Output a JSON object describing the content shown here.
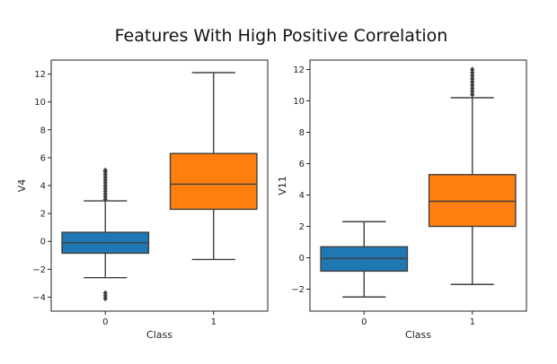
{
  "figure": {
    "title": "Features With High Positive Correlation"
  },
  "chart_data": [
    {
      "type": "box",
      "xlabel": "Class",
      "ylabel": "V4",
      "categories": [
        "0",
        "1"
      ],
      "ylim": [
        -5,
        13
      ],
      "yticks": [
        -4,
        -2,
        0,
        2,
        4,
        6,
        8,
        10,
        12
      ],
      "colors": [
        "#1f77b4",
        "#ff7f0e"
      ],
      "boxes": [
        {
          "category": "0",
          "whisker_low": -2.6,
          "q1": -0.85,
          "median": -0.1,
          "q3": 0.65,
          "whisker_high": 2.9,
          "outliers": [
            3.0,
            3.2,
            3.4,
            3.6,
            3.8,
            4.0,
            4.2,
            4.4,
            4.6,
            4.8,
            5.0,
            5.1,
            -3.7,
            -3.9,
            -4.1
          ]
        },
        {
          "category": "1",
          "whisker_low": -1.3,
          "q1": 2.3,
          "median": 4.1,
          "q3": 6.3,
          "whisker_high": 12.1,
          "outliers": []
        }
      ]
    },
    {
      "type": "box",
      "xlabel": "Class",
      "ylabel": "V11",
      "categories": [
        "0",
        "1"
      ],
      "ylim": [
        -3.4,
        12.6
      ],
      "yticks": [
        -2,
        0,
        2,
        4,
        6,
        8,
        10,
        12
      ],
      "colors": [
        "#1f77b4",
        "#ff7f0e"
      ],
      "boxes": [
        {
          "category": "0",
          "whisker_low": -2.5,
          "q1": -0.85,
          "median": -0.05,
          "q3": 0.7,
          "whisker_high": 2.3,
          "outliers": []
        },
        {
          "category": "1",
          "whisker_low": -1.7,
          "q1": 2.0,
          "median": 3.6,
          "q3": 5.3,
          "whisker_high": 10.2,
          "outliers": [
            10.4,
            10.6,
            10.8,
            11.0,
            11.2,
            11.4,
            11.6,
            11.8,
            12.0
          ]
        }
      ]
    }
  ]
}
